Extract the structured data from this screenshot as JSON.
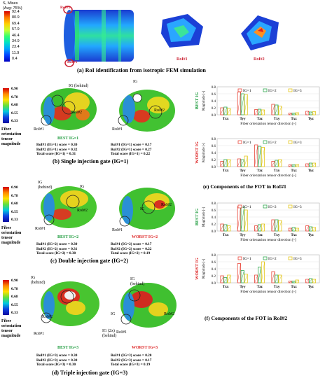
{
  "section_a": {
    "legend_title": "S, Mises",
    "legend_sub": "(Avg: 75%)",
    "legend_values": [
      "92.4",
      "80.9",
      "69.4",
      "57.9",
      "46.4",
      "34.9",
      "23.4",
      "11.9",
      "0.4"
    ],
    "rois": [
      "RoI#1",
      "RoI#2"
    ],
    "caption": "(a) RoI identification from isotropic FEM simulation"
  },
  "fiber_legend": {
    "values": [
      "0.90",
      "0.78",
      "0.68",
      "0.55",
      "0.33"
    ],
    "label_lines": [
      "Fiber",
      "orientation",
      "tensor",
      "magnitude"
    ]
  },
  "sim_labels": {
    "ig": "IG",
    "ig_behind": "IG (behind)",
    "ig_behind_2": "IG\n(behind)",
    "ig_2x_behind": "IG (2x)\n(behind)",
    "roi1": "RoI#1",
    "roi2": "RoI#2"
  },
  "section_b": {
    "best_tag": "BEST IG=1",
    "left_scores": [
      "RoI#1 (IG=1) score = 0.30",
      "RoI#2 (IG=1) score = 0.32",
      "Total score (IG=1) = 0.31"
    ],
    "right_scores": [
      "RoI#1 (IG=1) score = 0.17",
      "RoI#2 (IG=1) score = 0.27",
      "Total score (IG=1) = 0.22"
    ],
    "caption": "(b) Single injection gate (IG=1)"
  },
  "section_c": {
    "best_tag": "BEST IG=2",
    "worst_tag": "WORST IG=2",
    "left_scores": [
      "RoI#1 (IG=2) score = 0.30",
      "RoI#2 (IG=2) score = 0.31",
      "Total score (IG=2) = 0.30"
    ],
    "right_scores": [
      "RoI#1 (IG=2) score = 0.17",
      "RoI#2 (IG=2) score = 0.22",
      "Total score (IG=2) = 0.19"
    ],
    "caption": "(c) Double injection gate (IG=2)"
  },
  "section_d": {
    "best_tag": "BEST IG=3",
    "worst_tag": "WORST IG=3",
    "left_scores": [
      "RoI#1 (IG=3) score = 0.30",
      "RoI#2 (IG=3) score = 0.30",
      "Total score (IG=3) = 0.30"
    ],
    "right_scores": [
      "RoI#1 (IG=3) score = 0.20",
      "RoI#2 (IG=3) score = 0.17",
      "Total score (IG=3) = 0.19"
    ],
    "caption": "(d) Triple injection gate (IG=3)"
  },
  "caption_e": "(e) Components of the FOT in RoI#1",
  "caption_f": "(f) Components of the FOT in RoI#2",
  "colors": {
    "ig1": "#e8463a",
    "ig2": "#2fa84f",
    "ig3": "#e3c619",
    "best": "#1a9a3a",
    "worst": "#d22"
  },
  "chart_data": [
    {
      "type": "bar",
      "side_label": "BEST IG",
      "categories": [
        "Txx",
        "Tyy",
        "Tzz",
        "Txy",
        "Txz",
        "Tyz"
      ],
      "ylabel": "Magnitude [-]",
      "xlabel": "Fiber orientation tensor direction [-]",
      "ylim": [
        0,
        0.8
      ],
      "yticks": [
        "0.0",
        "0.2",
        "0.4",
        "0.6",
        "0.8"
      ],
      "series": [
        {
          "name": "IG=1",
          "values": [
            0.2,
            0.65,
            0.15,
            0.3,
            0.05,
            0.1
          ]
        },
        {
          "name": "IG=2",
          "values": [
            0.22,
            0.6,
            0.16,
            0.28,
            0.05,
            0.08
          ]
        },
        {
          "name": "IG=3",
          "values": [
            0.18,
            0.58,
            0.14,
            0.25,
            0.06,
            0.09
          ]
        }
      ]
    },
    {
      "type": "bar",
      "side_label": "WORST IG",
      "categories": [
        "Txx",
        "Tyy",
        "Tzz",
        "Txy",
        "Txz",
        "Tyz"
      ],
      "ylabel": "Magnitude [-]",
      "xlabel": "Fiber orientation tensor direction [-]",
      "ylim": [
        0,
        0.8
      ],
      "yticks": [
        "0.0",
        "0.2",
        "0.4",
        "0.6",
        "0.8"
      ],
      "series": [
        {
          "name": "IG=1",
          "values": [
            0.15,
            0.22,
            0.62,
            0.15,
            0.05,
            0.08
          ]
        },
        {
          "name": "IG=2",
          "values": [
            0.2,
            0.2,
            0.58,
            0.18,
            0.05,
            0.1
          ]
        },
        {
          "name": "IG=3",
          "values": [
            0.2,
            0.3,
            0.55,
            0.2,
            0.06,
            0.1
          ]
        }
      ]
    },
    {
      "type": "bar",
      "side_label": "BEST IG",
      "categories": [
        "Txx",
        "Tyy",
        "Tzz",
        "Txy",
        "Txz",
        "Tyz"
      ],
      "ylabel": "Magnitude [-]",
      "xlabel": "Fiber orientation tensor direction [-]",
      "ylim": [
        0,
        0.8
      ],
      "yticks": [
        "0.0",
        "0.2",
        "0.4",
        "0.6",
        "0.8"
      ],
      "series": [
        {
          "name": "IG=1",
          "values": [
            0.2,
            0.7,
            0.15,
            0.32,
            0.08,
            0.15
          ]
        },
        {
          "name": "IG=2",
          "values": [
            0.18,
            0.68,
            0.18,
            0.32,
            0.1,
            0.12
          ]
        },
        {
          "name": "IG=3",
          "values": [
            0.15,
            0.6,
            0.2,
            0.3,
            0.08,
            0.1
          ]
        }
      ]
    },
    {
      "type": "bar",
      "side_label": "WORST IG",
      "categories": [
        "Txx",
        "Tyy",
        "Tzz",
        "Txy",
        "Txz",
        "Tyz"
      ],
      "ylabel": "Magnitude [-]",
      "xlabel": "Fiber orientation tensor direction [-]",
      "ylim": [
        0,
        0.8
      ],
      "yticks": [
        "0.0",
        "0.2",
        "0.4",
        "0.6",
        "0.8"
      ],
      "series": [
        {
          "name": "IG=1",
          "values": [
            0.2,
            0.55,
            0.22,
            0.32,
            0.05,
            0.1
          ]
        },
        {
          "name": "IG=2",
          "values": [
            0.15,
            0.35,
            0.45,
            0.22,
            0.05,
            0.12
          ]
        },
        {
          "name": "IG=3",
          "values": [
            0.22,
            0.25,
            0.6,
            0.22,
            0.08,
            0.1
          ]
        }
      ]
    }
  ]
}
